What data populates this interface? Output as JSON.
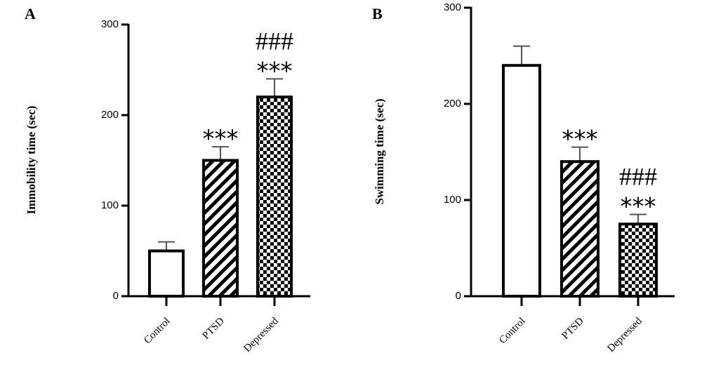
{
  "chart_data": [
    {
      "type": "bar",
      "panel": "A",
      "ylabel": "Immobility time (sec)",
      "ylim": [
        0,
        300
      ],
      "yticks": [
        0,
        100,
        200,
        300
      ],
      "categories": [
        "Control",
        "PTSD",
        "Depressed"
      ],
      "values": [
        50,
        150,
        220
      ],
      "errors": [
        10,
        15,
        20
      ],
      "patterns": [
        "none",
        "diagonal-stripes",
        "checkerboard"
      ],
      "annotations": [
        {
          "category": "PTSD",
          "lines": [
            "***"
          ]
        },
        {
          "category": "Depressed",
          "lines": [
            "###",
            "***"
          ]
        }
      ]
    },
    {
      "type": "bar",
      "panel": "B",
      "ylabel": "Swimming time (sec)",
      "ylim": [
        0,
        300
      ],
      "yticks": [
        0,
        100,
        200,
        300
      ],
      "categories": [
        "Control",
        "PTSD",
        "Depressed"
      ],
      "values": [
        240,
        140,
        75
      ],
      "errors": [
        20,
        15,
        10
      ],
      "patterns": [
        "none",
        "diagonal-stripes",
        "checkerboard"
      ],
      "annotations": [
        {
          "category": "PTSD",
          "lines": [
            "***"
          ]
        },
        {
          "category": "Depressed",
          "lines": [
            "###",
            "***"
          ]
        }
      ]
    }
  ]
}
